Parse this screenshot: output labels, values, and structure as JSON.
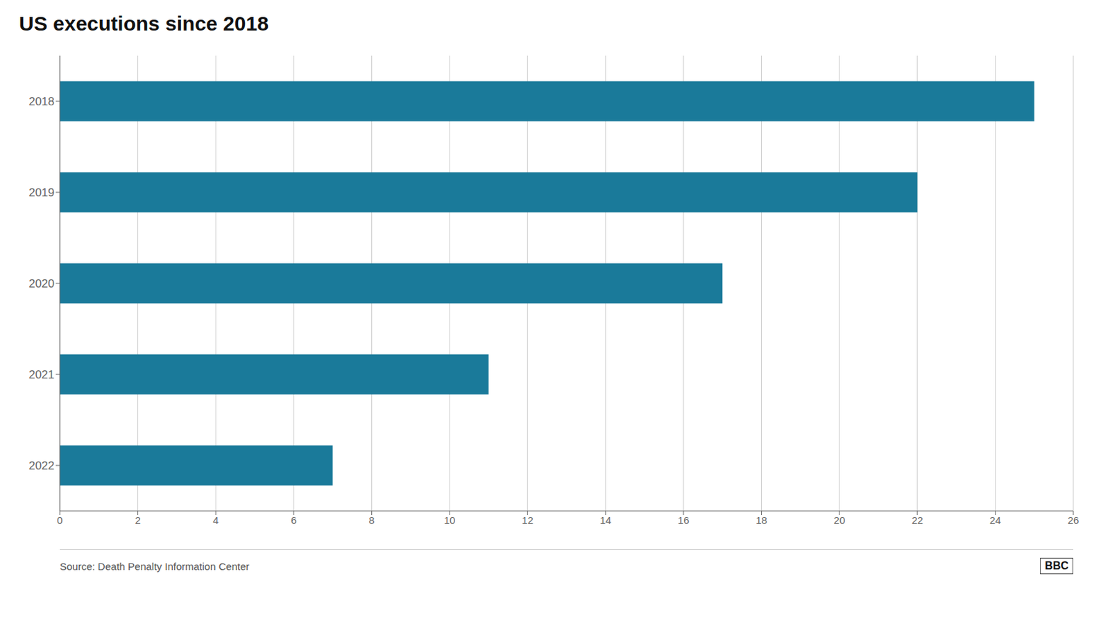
{
  "chart_data": {
    "type": "bar",
    "title": "US executions since 2018",
    "orientation": "horizontal",
    "categories": [
      "2022",
      "2021",
      "2020",
      "2019",
      "2018"
    ],
    "values": [
      7,
      11,
      17,
      22,
      25
    ],
    "color": "#1a7a9a",
    "xlim": [
      0,
      26
    ],
    "xticks": [
      0,
      2,
      4,
      6,
      8,
      10,
      12,
      14,
      16,
      18,
      20,
      22,
      24,
      26
    ],
    "grid": true,
    "annotations": [
      "Source: Death Penalty Information Center",
      "BBC"
    ]
  }
}
